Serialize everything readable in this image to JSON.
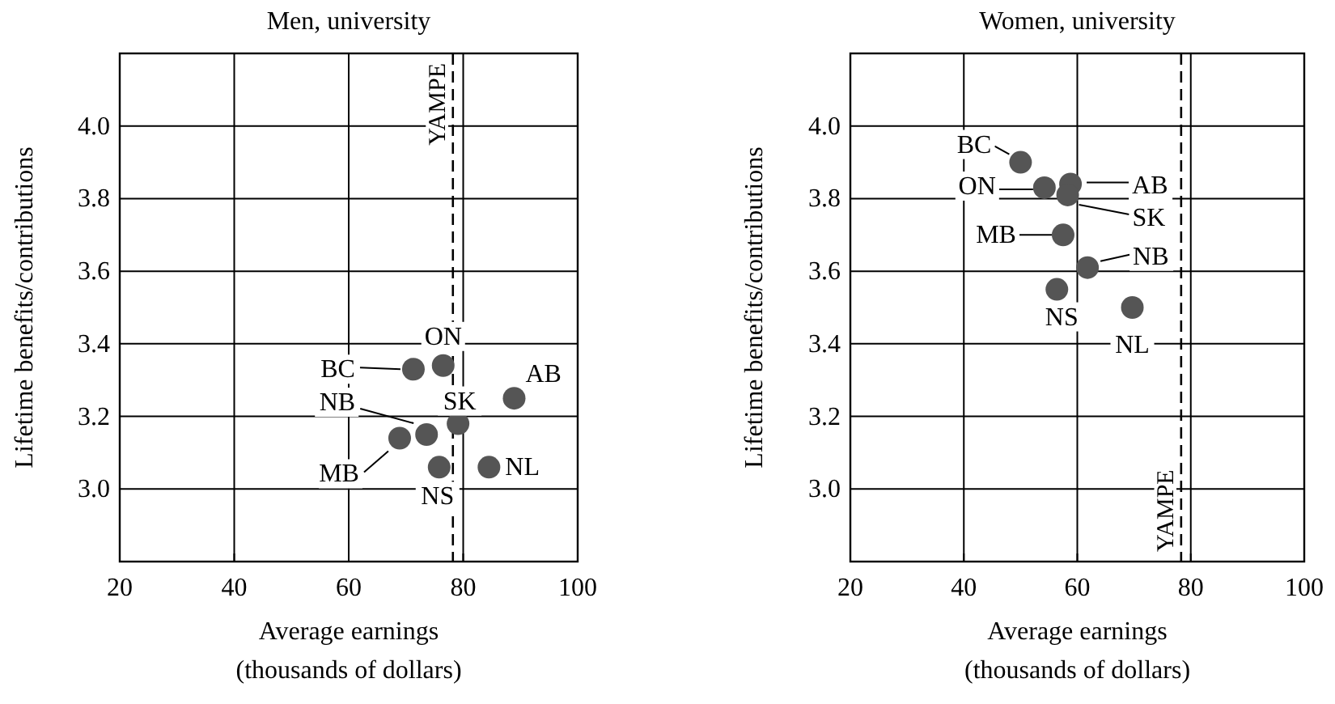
{
  "chart_data": [
    {
      "type": "scatter",
      "title": "Men, university",
      "xlabel": "Average earnings\n(thousands of dollars)",
      "ylabel": "Lifetime benefits/contributions",
      "xlim": [
        20,
        100
      ],
      "xticks": [
        20,
        40,
        60,
        80,
        100
      ],
      "ylim": [
        2.8,
        4.2
      ],
      "yticks": [
        {
          "value": 3,
          "label": "3.0"
        },
        {
          "value": 3.2,
          "label": "3.2"
        },
        {
          "value": 3.4,
          "label": "3.4"
        },
        {
          "value": 3.6,
          "label": "3.6"
        },
        {
          "value": 3.8,
          "label": "3.8"
        },
        {
          "value": 4,
          "label": "4.0"
        }
      ],
      "grid": true,
      "marker": "circle",
      "series": [
        {
          "color": "#555555",
          "x": [
            71.3,
            76.5,
            88.9,
            79.1,
            73.6,
            68.9,
            75.8,
            84.5
          ],
          "values": [
            3.33,
            3.34,
            3.25,
            3.18,
            3.15,
            3.14,
            3.06,
            3.06
          ]
        }
      ],
      "annotations": [
        {
          "text": "BC",
          "x": 71.3,
          "y": 3.33
        },
        {
          "text": "ON",
          "x": 76.5,
          "y": 3.34
        },
        {
          "text": "AB",
          "x": 88.9,
          "y": 3.25
        },
        {
          "text": "SK",
          "x": 79.1,
          "y": 3.18
        },
        {
          "text": "NB",
          "x": 73.6,
          "y": 3.15
        },
        {
          "text": "MB",
          "x": 68.9,
          "y": 3.14
        },
        {
          "text": "NS",
          "x": 75.8,
          "y": 3.06
        },
        {
          "text": "NL",
          "x": 84.5,
          "y": 3.06
        }
      ],
      "ref_lines": [
        {
          "axis": "x",
          "value": 78.2,
          "label": "YAMPE",
          "line_style": "dashed",
          "color": "#000000"
        }
      ]
    },
    {
      "type": "scatter",
      "title": "Women, university",
      "xlabel": "Average earnings\n(thousands of dollars)",
      "ylabel": "Lifetime benefits/contributions",
      "xlim": [
        20,
        100
      ],
      "xticks": [
        20,
        40,
        60,
        80,
        100
      ],
      "ylim": [
        2.8,
        4.2
      ],
      "yticks": [
        {
          "value": 3,
          "label": "3.0"
        },
        {
          "value": 3.2,
          "label": "3.2"
        },
        {
          "value": 3.4,
          "label": "3.4"
        },
        {
          "value": 3.6,
          "label": "3.6"
        },
        {
          "value": 3.8,
          "label": "3.8"
        },
        {
          "value": 4,
          "label": "4.0"
        }
      ],
      "grid": true,
      "marker": "circle",
      "series": [
        {
          "color": "#555555",
          "x": [
            50.0,
            54.2,
            58.8,
            58.3,
            57.5,
            61.8,
            56.4,
            69.7
          ],
          "values": [
            3.9,
            3.83,
            3.84,
            3.81,
            3.7,
            3.61,
            3.55,
            3.5
          ]
        }
      ],
      "annotations": [
        {
          "text": "BC",
          "x": 50.0,
          "y": 3.9
        },
        {
          "text": "ON",
          "x": 54.2,
          "y": 3.83
        },
        {
          "text": "AB",
          "x": 58.8,
          "y": 3.84
        },
        {
          "text": "SK",
          "x": 58.3,
          "y": 3.81
        },
        {
          "text": "MB",
          "x": 57.5,
          "y": 3.7
        },
        {
          "text": "NB",
          "x": 61.8,
          "y": 3.61
        },
        {
          "text": "NS",
          "x": 56.4,
          "y": 3.55
        },
        {
          "text": "NL",
          "x": 69.7,
          "y": 3.5
        }
      ],
      "ref_lines": [
        {
          "axis": "x",
          "value": 78.3,
          "label": "YAMPE",
          "line_style": "dashed",
          "color": "#000000"
        }
      ]
    }
  ]
}
